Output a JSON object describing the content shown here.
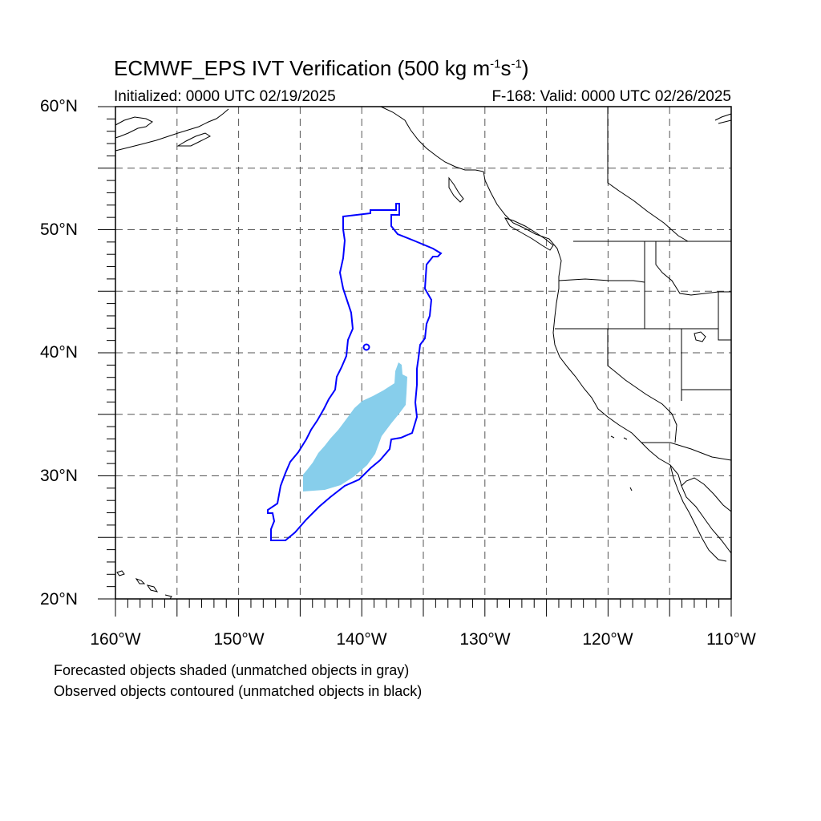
{
  "header": {
    "title_main": "ECMWF_EPS IVT Verification (500 kg m",
    "title_exp1": "-1",
    "title_mid": "s",
    "title_exp2": "-1",
    "title_end": ")",
    "initialized": "Initialized: 0000 UTC 02/19/2025",
    "valid": "F-168: Valid: 0000 UTC 02/26/2025"
  },
  "axes": {
    "lat_labels": [
      "60°N",
      "50°N",
      "40°N",
      "30°N",
      "20°N"
    ],
    "lon_labels": [
      "160°W",
      "150°W",
      "140°W",
      "130°W",
      "120°W",
      "110°W"
    ]
  },
  "map": {
    "lon_range": [
      -160,
      -110
    ],
    "lat_range": [
      20,
      60
    ],
    "grid": "dashed every 5 degrees",
    "forecast_color": "#87ceeb",
    "observed_color": "#0000ff",
    "coast_color": "#000000"
  },
  "notes": {
    "line1": "Forecasted objects shaded (unmatched objects in gray)",
    "line2": "Observed objects contoured (unmatched objects in black)"
  }
}
